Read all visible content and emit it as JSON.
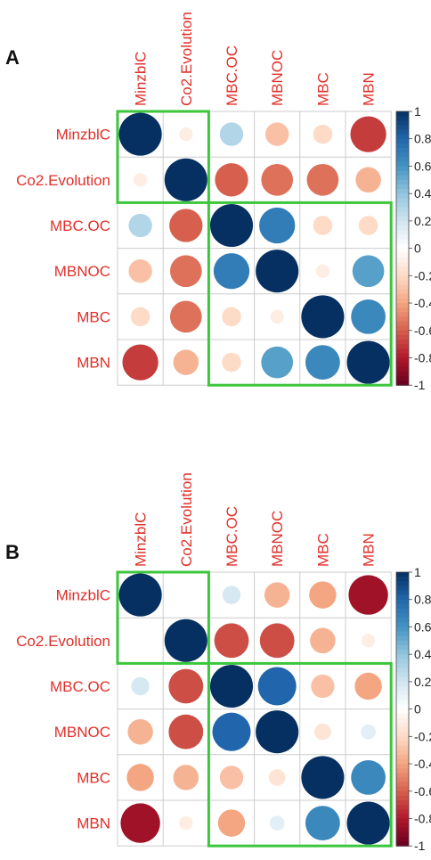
{
  "colors": {
    "label": "#e0302a",
    "grid": "#cccccc",
    "highlight_box": "#3cc63c",
    "scale_low": "#67001f",
    "scale_mid": "#ffffff",
    "scale_high": "#053061"
  },
  "chart_data": [
    {
      "type": "heatmap",
      "panel_letter": "A",
      "variables": [
        "MinzblC",
        "Co2.Evolution",
        "MBC.OC",
        "MBNOC",
        "MBC",
        "MBN"
      ],
      "value_range": [
        -1,
        1
      ],
      "colorbar_ticks": [
        "1",
        "0.8",
        "0.6",
        "0.4",
        "0.2",
        "0",
        "-0.2",
        "-0.4",
        "-0.6",
        "-0.8",
        "-1"
      ],
      "matrix": [
        [
          1.0,
          -0.1,
          0.3,
          -0.3,
          -0.2,
          -0.7
        ],
        [
          -0.1,
          1.0,
          -0.6,
          -0.55,
          -0.55,
          -0.35
        ],
        [
          0.3,
          -0.6,
          1.0,
          0.7,
          -0.2,
          -0.2
        ],
        [
          -0.3,
          -0.55,
          0.7,
          1.0,
          -0.1,
          0.55
        ],
        [
          -0.2,
          -0.55,
          -0.2,
          -0.1,
          1.0,
          0.65
        ],
        [
          -0.7,
          -0.35,
          -0.2,
          0.55,
          0.65,
          1.0
        ]
      ],
      "highlight_groups": [
        [
          0,
          1
        ],
        [
          2,
          5
        ]
      ]
    },
    {
      "type": "heatmap",
      "panel_letter": "B",
      "variables": [
        "MinzblC",
        "Co2.Evolution",
        "MBC.OC",
        "MBNOC",
        "MBC",
        "MBN"
      ],
      "value_range": [
        -1,
        1
      ],
      "colorbar_ticks": [
        "1",
        "0.8",
        "0.6",
        "0.4",
        "0.2",
        "0",
        "-0.2",
        "-0.4",
        "-0.6",
        "-0.8",
        "-1"
      ],
      "matrix": [
        [
          1.0,
          0.0,
          0.18,
          -0.35,
          -0.4,
          -0.85
        ],
        [
          0.0,
          1.0,
          -0.65,
          -0.65,
          -0.35,
          -0.1
        ],
        [
          0.18,
          -0.65,
          1.0,
          0.8,
          -0.3,
          -0.4
        ],
        [
          -0.35,
          -0.65,
          0.8,
          1.0,
          -0.15,
          0.12
        ],
        [
          -0.4,
          -0.35,
          -0.3,
          -0.15,
          1.0,
          0.65
        ],
        [
          -0.85,
          -0.1,
          -0.4,
          0.12,
          0.65,
          1.0
        ]
      ],
      "highlight_groups": [
        [
          0,
          1
        ],
        [
          2,
          5
        ]
      ]
    }
  ]
}
